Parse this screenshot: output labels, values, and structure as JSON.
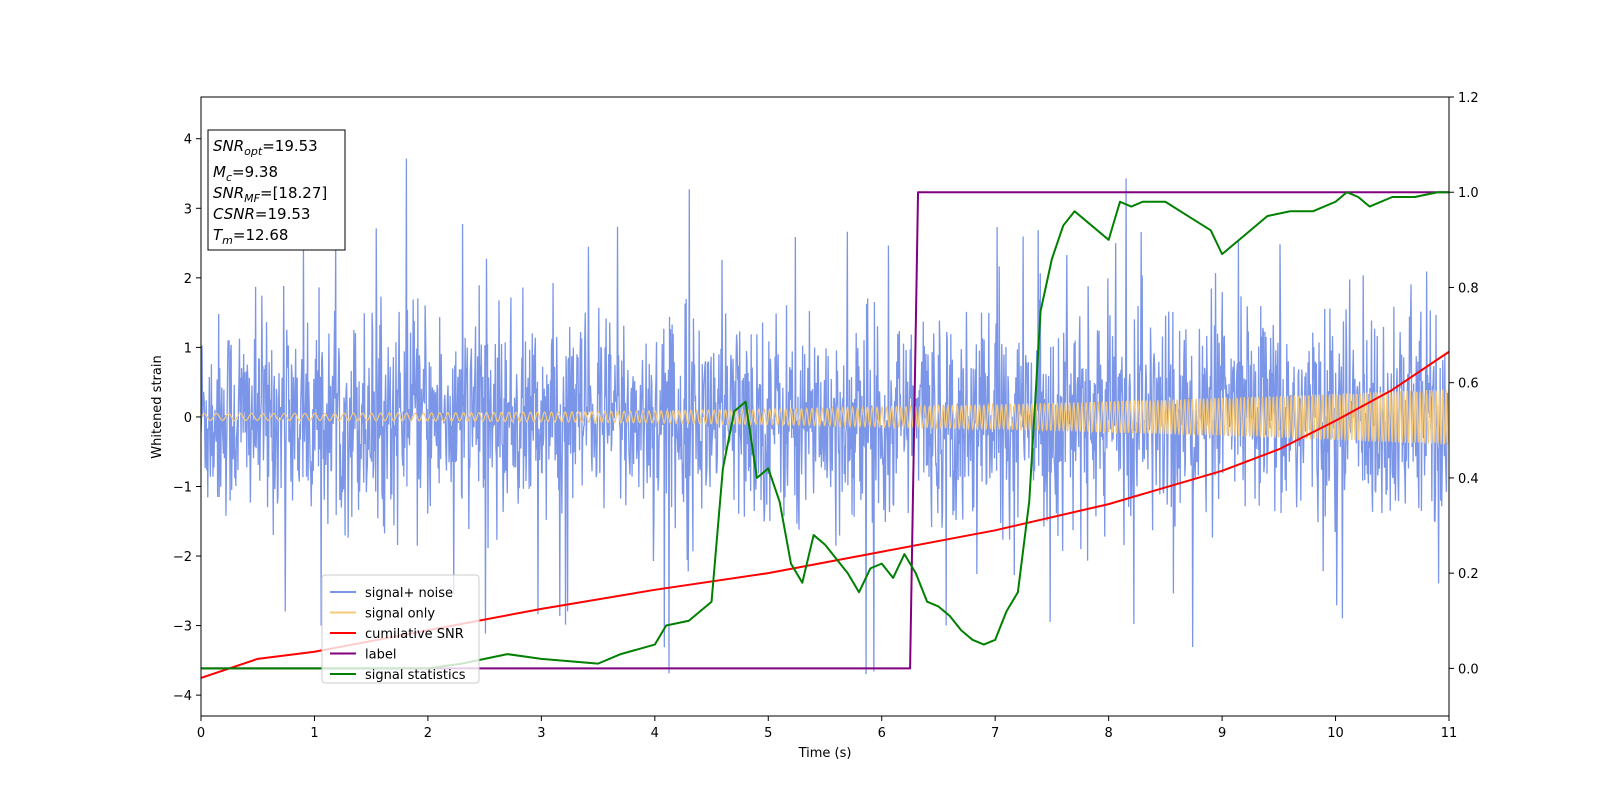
{
  "chart_data": {
    "type": "line",
    "xlabel": "Time (s)",
    "ylabel": "Whitened strain",
    "xlim": [
      0,
      11
    ],
    "ylim_left": [
      -4.3,
      4.6
    ],
    "ylim_right": [
      -0.1,
      1.2
    ],
    "x_ticks": [
      "0",
      "1",
      "2",
      "3",
      "4",
      "5",
      "6",
      "7",
      "8",
      "9",
      "10",
      "11"
    ],
    "y_ticks_left": [
      "−4",
      "−3",
      "−2",
      "−1",
      "0",
      "1",
      "2",
      "3",
      "4"
    ],
    "y_ticks_right": [
      "0.0",
      "0.2",
      "0.4",
      "0.6",
      "0.8",
      "1.0",
      "1.2"
    ],
    "legend_position": "lower-left",
    "grid": false,
    "annotation": {
      "snr_opt": {
        "sym": "SNR",
        "sub": "opt",
        "value": "=19.53"
      },
      "mc": {
        "sym": "M",
        "sub": "c",
        "value": "=9.38"
      },
      "snr_mf": {
        "sym": "SNR",
        "sub": "MF",
        "value": "=[18.27]"
      },
      "csnr": {
        "sym": "CSNR",
        "value": "=19.53"
      },
      "tm": {
        "sym": "T",
        "sub": "m",
        "value": "=12.68"
      }
    },
    "series": [
      {
        "name": "signal+ noise",
        "color": "#7b96e8",
        "axis": "left",
        "description": "noisy whitened strain, envelope ~ ±1.8, spikes to ~3.8"
      },
      {
        "name": "signal only",
        "color": "#f6c97a",
        "axis": "left",
        "chirp": {
          "amp_start": 0.05,
          "amp_end": 0.4
        }
      },
      {
        "name": "cumilative SNR",
        "color": "#ff0000",
        "axis": "right",
        "x": [
          0,
          0.5,
          1,
          2,
          3,
          4,
          5,
          6,
          7,
          8,
          9,
          9.5,
          10,
          10.5,
          11
        ],
        "y": [
          -0.02,
          0.02,
          0.035,
          0.08,
          0.125,
          0.165,
          0.2,
          0.245,
          0.29,
          0.345,
          0.415,
          0.46,
          0.52,
          0.585,
          0.665
        ]
      },
      {
        "name": "label",
        "color": "#800080",
        "axis": "right",
        "x": [
          0,
          6.25,
          6.32,
          11
        ],
        "y": [
          0,
          0,
          1,
          1
        ]
      },
      {
        "name": "signal statistics",
        "color": "#008000",
        "axis": "right",
        "x": [
          0,
          1,
          2,
          2.3,
          2.7,
          3.0,
          3.5,
          3.7,
          4.0,
          4.1,
          4.3,
          4.5,
          4.6,
          4.7,
          4.8,
          4.9,
          5.0,
          5.1,
          5.2,
          5.3,
          5.4,
          5.5,
          5.6,
          5.7,
          5.8,
          5.9,
          6.0,
          6.1,
          6.2,
          6.3,
          6.4,
          6.5,
          6.6,
          6.7,
          6.8,
          6.9,
          7.0,
          7.1,
          7.2,
          7.3,
          7.4,
          7.5,
          7.6,
          7.7,
          7.8,
          7.9,
          8.0,
          8.1,
          8.2,
          8.3,
          8.5,
          8.7,
          8.9,
          9.0,
          9.1,
          9.2,
          9.4,
          9.6,
          9.8,
          10.0,
          10.1,
          10.2,
          10.3,
          10.5,
          10.7,
          10.9,
          11.0
        ],
        "y": [
          0.0,
          0.0,
          0.0,
          0.01,
          0.03,
          0.02,
          0.01,
          0.03,
          0.05,
          0.09,
          0.1,
          0.14,
          0.42,
          0.54,
          0.56,
          0.4,
          0.42,
          0.35,
          0.22,
          0.18,
          0.28,
          0.26,
          0.23,
          0.2,
          0.16,
          0.21,
          0.22,
          0.19,
          0.24,
          0.2,
          0.14,
          0.13,
          0.11,
          0.08,
          0.06,
          0.05,
          0.06,
          0.12,
          0.16,
          0.35,
          0.75,
          0.86,
          0.93,
          0.96,
          0.94,
          0.92,
          0.9,
          0.98,
          0.97,
          0.98,
          0.98,
          0.95,
          0.92,
          0.87,
          0.89,
          0.91,
          0.95,
          0.96,
          0.96,
          0.98,
          1.0,
          0.99,
          0.97,
          0.99,
          0.99,
          1.0,
          1.0
        ]
      }
    ]
  }
}
